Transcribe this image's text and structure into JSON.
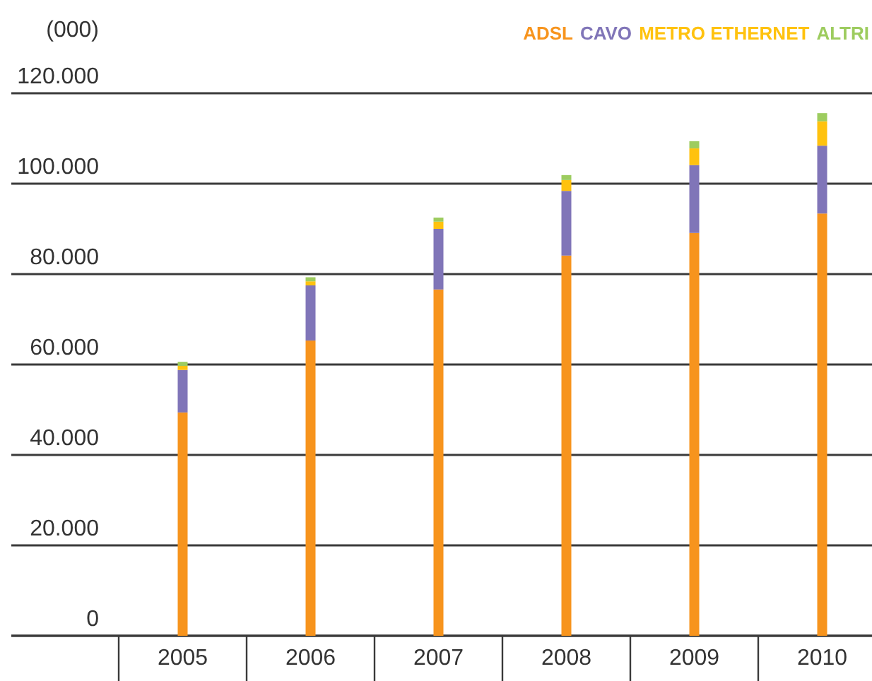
{
  "chart_data": {
    "type": "bar",
    "stacked": true,
    "ylabel": "(000)",
    "categories": [
      "2005",
      "2006",
      "2007",
      "2008",
      "2009",
      "2010"
    ],
    "series": [
      {
        "name": "ADSL",
        "color": "#f7941d",
        "values": [
          49400,
          65300,
          76600,
          84100,
          89100,
          93400
        ]
      },
      {
        "name": "CAVO",
        "color": "#8075b8",
        "values": [
          9400,
          12200,
          13400,
          14300,
          15000,
          15000
        ]
      },
      {
        "name": "METRO ETHERNET",
        "color": "#ffc20e",
        "values": [
          900,
          900,
          1600,
          2400,
          3700,
          5400
        ]
      },
      {
        "name": "ALTRI",
        "color": "#9dcc5f",
        "values": [
          900,
          900,
          900,
          1100,
          1600,
          1800
        ]
      }
    ],
    "ylim": [
      0,
      120000
    ],
    "yticks": [
      {
        "value": 0,
        "label": "0"
      },
      {
        "value": 20000,
        "label": "20.000"
      },
      {
        "value": 40000,
        "label": "40.000"
      },
      {
        "value": 60000,
        "label": "60.000"
      },
      {
        "value": 80000,
        "label": "80.000"
      },
      {
        "value": 100000,
        "label": "100.000"
      },
      {
        "value": 120000,
        "label": "120.000"
      }
    ],
    "grid": "y",
    "legend": "top right"
  }
}
